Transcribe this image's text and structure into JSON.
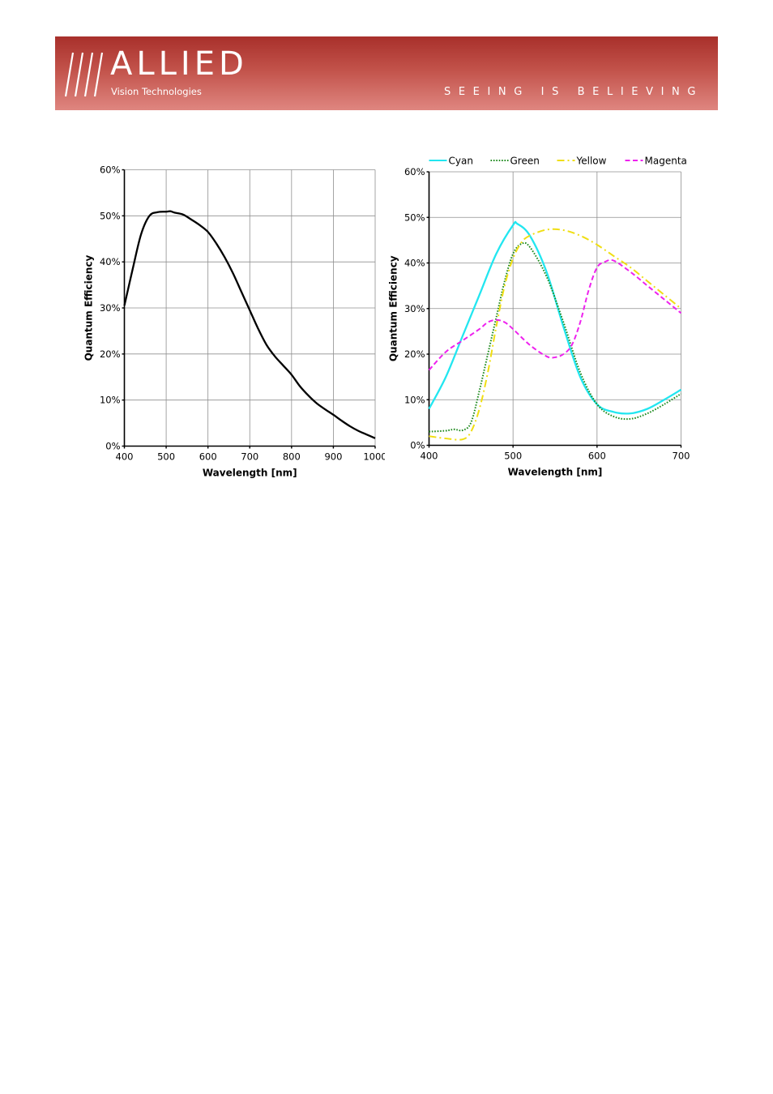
{
  "header": {
    "logo_text": "ALLIED",
    "logo_subtext": "Vision Technologies",
    "tagline": "SEEING IS BELIEVING",
    "colors": {
      "banner_top": "#a8302b",
      "banner_bottom": "#df8680"
    }
  },
  "chart_data": [
    {
      "type": "line",
      "title": "",
      "xlabel": "Wavelength [nm]",
      "ylabel": "Quantum Efficiency",
      "xlim": [
        400,
        1000
      ],
      "ylim": [
        0,
        60
      ],
      "xticks": [
        400,
        500,
        600,
        700,
        800,
        900,
        1000
      ],
      "yticks": [
        0,
        10,
        20,
        30,
        40,
        50,
        60
      ],
      "ytick_labels": [
        "0%",
        "10%",
        "20%",
        "30%",
        "40%",
        "50%",
        "60%"
      ],
      "grid": true,
      "legend": "none",
      "series": [
        {
          "color": "#000000",
          "dash": "solid",
          "x": [
            400,
            420,
            440,
            460,
            480,
            500,
            510,
            520,
            540,
            560,
            580,
            600,
            620,
            640,
            660,
            680,
            700,
            720,
            740,
            760,
            780,
            800,
            820,
            840,
            860,
            880,
            900,
            920,
            940,
            960,
            980,
            1000
          ],
          "y": [
            30.5,
            38.5,
            46,
            50,
            50.8,
            50.9,
            51.0,
            50.7,
            50.3,
            49.2,
            48.0,
            46.5,
            44.0,
            41.0,
            37.5,
            33.5,
            29.5,
            25.5,
            22.0,
            19.5,
            17.5,
            15.5,
            13.0,
            11.0,
            9.3,
            8.0,
            6.8,
            5.5,
            4.3,
            3.3,
            2.5,
            1.7
          ]
        }
      ]
    },
    {
      "type": "line",
      "title": "",
      "xlabel": "Wavelength [nm]",
      "ylabel": "Quantum Efficiency",
      "xlim": [
        400,
        700
      ],
      "ylim": [
        0,
        60
      ],
      "xticks": [
        400,
        500,
        600,
        700
      ],
      "yticks": [
        0,
        10,
        20,
        30,
        40,
        50,
        60
      ],
      "ytick_labels": [
        "0%",
        "10%",
        "20%",
        "30%",
        "40%",
        "50%",
        "60%"
      ],
      "grid": true,
      "legend": "top",
      "series": [
        {
          "name": "Cyan",
          "color": "#22e6f0",
          "dash": "solid",
          "x": [
            400,
            420,
            440,
            460,
            480,
            500,
            505,
            520,
            540,
            560,
            580,
            600,
            620,
            640,
            660,
            680,
            700
          ],
          "y": [
            8,
            15,
            24,
            33,
            42,
            48.3,
            48.6,
            46,
            38,
            26,
            15,
            9,
            7.3,
            7,
            8,
            10,
            12.2
          ]
        },
        {
          "name": "Green",
          "color": "#1e8a1e",
          "dash": "dotted",
          "x": [
            400,
            420,
            430,
            440,
            450,
            460,
            470,
            480,
            490,
            500,
            510,
            520,
            540,
            560,
            580,
            600,
            620,
            640,
            660,
            680,
            700
          ],
          "y": [
            3,
            3.2,
            3.5,
            3.3,
            5,
            12,
            20,
            28,
            36,
            42,
            44.2,
            43.5,
            37,
            27,
            16,
            9,
            6.3,
            5.8,
            7,
            9,
            11.3
          ]
        },
        {
          "name": "Yellow",
          "color": "#f0de12",
          "dash": "dash-dot",
          "x": [
            400,
            420,
            440,
            450,
            460,
            470,
            480,
            490,
            500,
            510,
            520,
            540,
            560,
            580,
            600,
            620,
            640,
            660,
            680,
            700
          ],
          "y": [
            2,
            1.5,
            1.3,
            3,
            8,
            16,
            26,
            35,
            41,
            44.5,
            46,
            47.3,
            47.2,
            46,
            44,
            41.5,
            39,
            36,
            33,
            30
          ]
        },
        {
          "name": "Magenta",
          "color": "#ee22ee",
          "dash": "dashed",
          "x": [
            400,
            420,
            440,
            460,
            470,
            480,
            490,
            500,
            520,
            540,
            550,
            560,
            570,
            580,
            590,
            600,
            610,
            620,
            640,
            660,
            680,
            700
          ],
          "y": [
            16.5,
            20.5,
            23,
            25.5,
            27,
            27.5,
            27,
            25.5,
            22,
            19.5,
            19.3,
            20,
            22,
            27,
            34,
            39,
            40.3,
            40.5,
            38,
            35,
            32,
            29
          ]
        }
      ]
    }
  ]
}
